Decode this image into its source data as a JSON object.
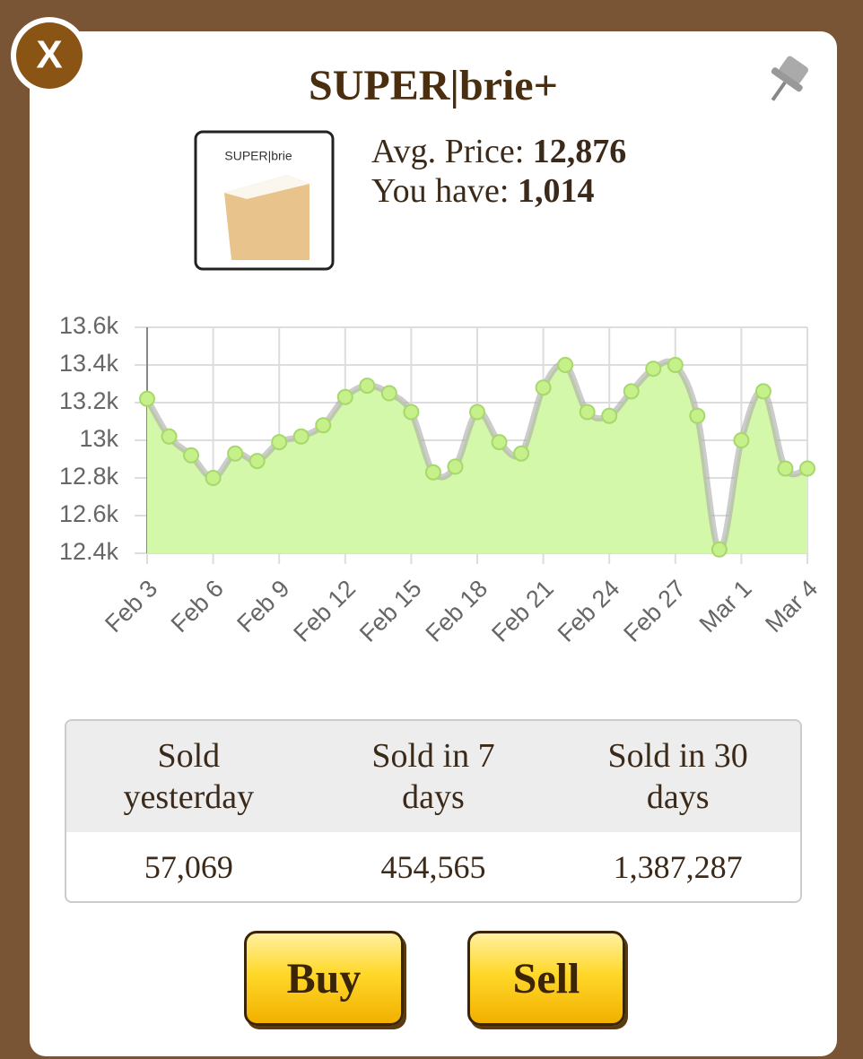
{
  "header": {
    "close": "X",
    "title": "SUPER|brie+"
  },
  "item": {
    "image_label": "SUPER|brie",
    "avg_price_label": "Avg. Price:",
    "avg_price": "12,876",
    "have_label": "You have:",
    "have": "1,014"
  },
  "chart_data": {
    "type": "line",
    "categories": [
      "Feb 3",
      null,
      null,
      "Feb 6",
      null,
      null,
      "Feb 9",
      null,
      null,
      "Feb 12",
      null,
      null,
      "Feb 15",
      null,
      null,
      "Feb 18",
      null,
      null,
      "Feb 21",
      null,
      null,
      "Feb 24",
      null,
      null,
      "Feb 27",
      null,
      null,
      "Mar 1",
      null,
      null,
      "Mar 4"
    ],
    "series": [
      {
        "color": "#d4f8aa",
        "values": [
          13220,
          13020,
          12920,
          12800,
          12930,
          12890,
          12990,
          13020,
          13080,
          13230,
          13290,
          13250,
          13150,
          12830,
          12860,
          13150,
          12990,
          12930,
          13280,
          13400,
          13150,
          13130,
          13260,
          13380,
          13400,
          13130,
          12420,
          13000,
          13260,
          12850,
          12850
        ]
      }
    ],
    "ylim": [
      12400,
      13600
    ],
    "yticks": [
      {
        "value": 12400,
        "label": "12.4k"
      },
      {
        "value": 12600,
        "label": "12.6k"
      },
      {
        "value": 12800,
        "label": "12.8k"
      },
      {
        "value": 13000,
        "label": "13k"
      },
      {
        "value": 13200,
        "label": "13.2k"
      },
      {
        "value": 13400,
        "label": "13.4k"
      },
      {
        "value": 13600,
        "label": "13.6k"
      }
    ],
    "grid": true
  },
  "table": {
    "headers": [
      "Sold yesterday",
      "Sold in 7 days",
      "Sold in 30 days"
    ],
    "values": [
      "57,069",
      "454,565",
      "1,387,287"
    ]
  },
  "buttons": [
    "Buy",
    "Sell"
  ]
}
